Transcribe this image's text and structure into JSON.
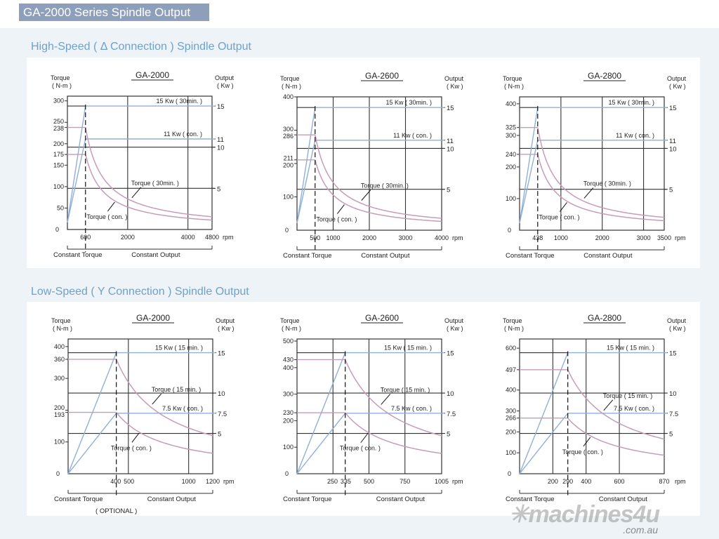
{
  "header": {
    "title": "GA-2000 Series Spindle Output"
  },
  "sections": [
    {
      "title": "High-Speed  ( Δ Connection ) Spindle Output"
    },
    {
      "title": "Low-Speed ( Y Connection ) Spindle Output"
    }
  ],
  "logo": {
    "name": "machines4u",
    "domain": ".com.au"
  },
  "colors": {
    "power": "#8fb0d8",
    "torque": "#c79cb8",
    "grid": "#333333"
  },
  "chart_data": [
    {
      "type": "line",
      "title": "GA-2000",
      "section": 0,
      "xlim": [
        0,
        4800
      ],
      "ylim": [
        0,
        311
      ],
      "plim": [
        0,
        16.2
      ],
      "base": 600,
      "xticks": [
        600,
        2000,
        4000,
        4800
      ],
      "xgrid": [
        2000,
        4000
      ],
      "yticks": [
        300,
        250,
        238,
        200,
        175,
        150,
        100,
        50,
        0
      ],
      "pticks": [
        15,
        11,
        10,
        5
      ],
      "pgrid": [
        10,
        5
      ],
      "power_lines": [
        {
          "kw": 15,
          "label": "15 Kw ( 30min. )"
        },
        {
          "kw": 11,
          "label": "11 Kw ( con. )"
        }
      ],
      "torque_curves": [
        {
          "t": 238,
          "label": "Torque ( 30min. )"
        },
        {
          "t": 175,
          "label": "Torque ( con. )"
        }
      ],
      "ylabel": "Torque",
      "yunit": "( N-m )",
      "plabel": "Output",
      "punit": "( Kw )",
      "xunit": "rpm",
      "regions": [
        "Constant Torque",
        "Constant Output"
      ]
    },
    {
      "type": "line",
      "title": "GA-2600",
      "section": 0,
      "xlim": [
        0,
        4000
      ],
      "ylim": [
        0,
        400
      ],
      "plim": [
        0,
        16.3
      ],
      "base": 500,
      "xticks": [
        500,
        1000,
        2000,
        3000,
        4000
      ],
      "xgrid": [
        1000,
        2000,
        3000
      ],
      "yticks": [
        400,
        300,
        286,
        211,
        200,
        100,
        0
      ],
      "pticks": [
        15,
        11,
        10,
        5
      ],
      "pgrid": [
        10,
        5
      ],
      "power_lines": [
        {
          "kw": 15,
          "label": "15 Kw ( 30min. )"
        },
        {
          "kw": 11,
          "label": "11 Kw ( con. )"
        }
      ],
      "torque_curves": [
        {
          "t": 286,
          "label": "Torque ( 30min. )"
        },
        {
          "t": 211,
          "label": "Torque ( con. )"
        }
      ],
      "ylabel": "Torque",
      "yunit": "( N-m )",
      "plabel": "Output",
      "punit": "( Kw )",
      "xunit": "rpm",
      "regions": [
        "Constant Torque",
        "Constant Output"
      ]
    },
    {
      "type": "line",
      "title": "GA-2800",
      "section": 0,
      "xlim": [
        0,
        3500
      ],
      "ylim": [
        0,
        422
      ],
      "plim": [
        0,
        16.3
      ],
      "base": 438,
      "xticks": [
        438,
        1000,
        2000,
        3000,
        3500
      ],
      "xgrid": [
        1000,
        2000,
        3000
      ],
      "yticks": [
        400,
        325,
        300,
        240,
        200,
        100,
        0
      ],
      "pticks": [
        15,
        11,
        10,
        5
      ],
      "pgrid": [
        10,
        5
      ],
      "power_lines": [
        {
          "kw": 15,
          "label": "15 Kw ( 30min. )"
        },
        {
          "kw": 11,
          "label": "11 Kw ( con. )"
        }
      ],
      "torque_curves": [
        {
          "t": 325,
          "label": "Torque ( 30min. )"
        },
        {
          "t": 240,
          "label": "Torque ( con. )"
        }
      ],
      "ylabel": "Torque",
      "yunit": "( N-m )",
      "plabel": "Output",
      "punit": "( Kw )",
      "xunit": "rpm",
      "regions": [
        "Constant Torque",
        "Constant Output"
      ]
    },
    {
      "type": "line",
      "title": "GA-2000",
      "section": 1,
      "xlim": [
        0,
        1200
      ],
      "ylim": [
        0,
        424
      ],
      "plim": [
        0,
        16.7
      ],
      "base": 400,
      "xticks": [
        400,
        500,
        1000,
        1200
      ],
      "xgrid": [
        500,
        1000
      ],
      "yticks": [
        400,
        360,
        300,
        200,
        193,
        100,
        0
      ],
      "pticks": [
        15,
        10,
        7.5,
        5
      ],
      "pgrid": [
        10,
        5
      ],
      "power_lines": [
        {
          "kw": 15,
          "label": "15 Kw ( 15 min. )"
        },
        {
          "kw": 7.5,
          "label": "7.5 Kw ( con. )"
        }
      ],
      "torque_curves": [
        {
          "t": 360,
          "label": "Torque ( 15 min. )"
        },
        {
          "t": 193,
          "label": "Torque ( con. )"
        }
      ],
      "ylabel": "Torque",
      "yunit": "( N-m )",
      "plabel": "Output",
      "punit": "( Kw )",
      "xunit": "rpm",
      "regions": [
        "Constant Torque",
        "Constant Output"
      ],
      "note": "( OPTIONAL )"
    },
    {
      "type": "line",
      "title": "GA-2600",
      "section": 1,
      "xlim": [
        0,
        1005
      ],
      "ylim": [
        0,
        508
      ],
      "plim": [
        0,
        16.7
      ],
      "base": 335,
      "xticks": [
        250,
        335,
        500,
        750,
        1005
      ],
      "xgrid": [
        250,
        500,
        750
      ],
      "yticks": [
        500,
        430,
        400,
        300,
        230,
        200,
        100,
        0
      ],
      "pticks": [
        15,
        10,
        7.5,
        5
      ],
      "pgrid": [
        10,
        5
      ],
      "power_lines": [
        {
          "kw": 15,
          "label": "15 Kw ( 15 min. )"
        },
        {
          "kw": 7.5,
          "label": "7.5 Kw ( con. )"
        }
      ],
      "torque_curves": [
        {
          "t": 430,
          "label": "Torque ( 15 min. )"
        },
        {
          "t": 230,
          "label": "Torque ( con. )"
        }
      ],
      "ylabel": "Torque",
      "yunit": "( N-m )",
      "plabel": "Output",
      "punit": "( Kw )",
      "xunit": "rpm",
      "regions": [
        "Constant Torque",
        "Constant Output"
      ]
    },
    {
      "type": "line",
      "title": "GA-2800",
      "section": 1,
      "xlim": [
        0,
        870
      ],
      "ylim": [
        0,
        644
      ],
      "plim": [
        0,
        16.7
      ],
      "base": 290,
      "xticks": [
        200,
        290,
        400,
        600,
        870
      ],
      "xgrid": [
        200,
        400,
        600
      ],
      "yticks": [
        600,
        497,
        400,
        300,
        266,
        200,
        100,
        0
      ],
      "pticks": [
        15,
        10,
        7.5,
        5
      ],
      "pgrid": [
        10,
        5
      ],
      "power_lines": [
        {
          "kw": 15,
          "label": "15 Kw ( 15 min. )"
        },
        {
          "kw": 7.5,
          "label": "7.5 Kw ( con. )"
        }
      ],
      "torque_curves": [
        {
          "t": 497,
          "label": "Torque ( 15 min. )"
        },
        {
          "t": 266,
          "label": "Torque ( con. )"
        }
      ],
      "ylabel": "Torque",
      "yunit": "( N-m )",
      "plabel": "Output",
      "punit": "( Kw )",
      "xunit": "rpm",
      "regions": [
        "Constant Torque",
        "Constant Output"
      ]
    }
  ]
}
